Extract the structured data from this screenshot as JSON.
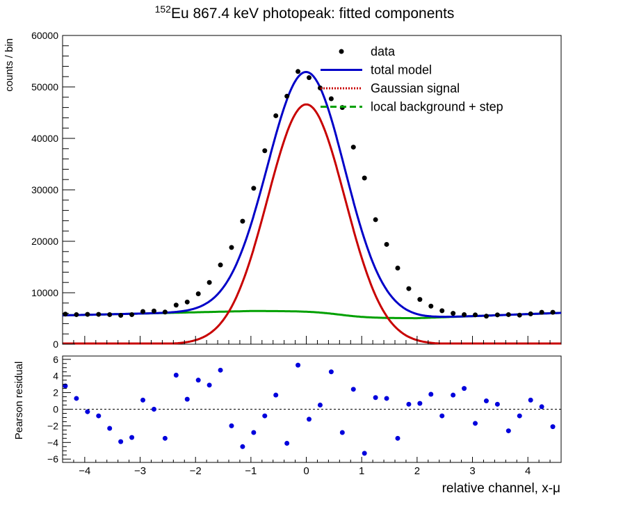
{
  "title": {
    "sup": "152",
    "main": "Eu 867.4 keV photopeak: fitted components"
  },
  "top_panel": {
    "ylabel": "counts / bin",
    "y_ticks": [
      0,
      10000,
      20000,
      30000,
      40000,
      50000,
      60000
    ],
    "y_tick_labels": [
      "0",
      "10000",
      "20000",
      "30000",
      "40000",
      "50000",
      "60000"
    ],
    "ylim": [
      0,
      60000
    ],
    "xlim": [
      -4.4,
      4.6
    ]
  },
  "bottom_panel": {
    "ylabel": "Pearson residual",
    "y_ticks": [
      -6,
      -4,
      -2,
      0,
      2,
      4,
      6
    ],
    "y_tick_labels": [
      "−6",
      "−4",
      "−2",
      "0",
      "2",
      "4",
      "6"
    ],
    "ylim": [
      -6.4,
      6.4
    ],
    "xlabel": "relative channel, x-μ",
    "x_ticks": [
      -4,
      -3,
      -2,
      -1,
      0,
      1,
      2,
      3,
      4
    ],
    "x_tick_labels": [
      "−4",
      "−3",
      "−2",
      "−1",
      "0",
      "1",
      "2",
      "3",
      "4"
    ]
  },
  "legend": {
    "position": "top-right",
    "entries": [
      {
        "label": "data",
        "style": "marker",
        "color": "#000000"
      },
      {
        "label": "total model",
        "style": "solid",
        "color": "#0000c8"
      },
      {
        "label": "Gaussian signal",
        "style": "dotted",
        "color": "#c80000"
      },
      {
        "label": "local background + step",
        "style": "dashed",
        "color": "#00a000"
      }
    ]
  },
  "colors": {
    "data": "#000000",
    "total": "#0000c8",
    "signal": "#c80000",
    "background": "#00a000",
    "residual": "#0000dc"
  },
  "chart_data": [
    {
      "type": "scatter",
      "panel": "top",
      "x": [
        -4.35,
        -4.15,
        -3.95,
        -3.75,
        -3.55,
        -3.35,
        -3.15,
        -2.95,
        -2.75,
        -2.55,
        -2.35,
        -2.15,
        -1.95,
        -1.75,
        -1.55,
        -1.35,
        -1.15,
        -0.95,
        -0.75,
        -0.55,
        -0.35,
        -0.15,
        0.05,
        0.25,
        0.45,
        0.65,
        0.85,
        1.05,
        1.25,
        1.45,
        1.65,
        1.85,
        2.05,
        2.25,
        2.45,
        2.65,
        2.85,
        3.05,
        3.25,
        3.45,
        3.65,
        3.85,
        4.05,
        4.25,
        4.45
      ],
      "y": [
        5850,
        5750,
        5800,
        5800,
        5750,
        5600,
        5750,
        6350,
        6450,
        6250,
        7600,
        8200,
        9800,
        12000,
        15400,
        18800,
        23900,
        30300,
        37600,
        44400,
        48200,
        53000,
        51800,
        49800,
        47700,
        46000,
        38300,
        32300,
        24200,
        19400,
        14800,
        10800,
        8700,
        7400,
        6500,
        6000,
        5750,
        5700,
        5450,
        5700,
        5750,
        5650,
        5900,
        6200,
        6200
      ]
    },
    {
      "type": "line",
      "panel": "top",
      "series": [
        {
          "name": "total model",
          "model": {
            "amplitude": 46600,
            "sigma": 0.7,
            "bg_left": 6450,
            "bg_right": 5050,
            "bg_slope": 250
          }
        },
        {
          "name": "Gaussian signal",
          "model": {
            "amplitude": 46600,
            "sigma": 0.7
          }
        },
        {
          "name": "local background + step",
          "model": {
            "bg_left": 6450,
            "bg_right": 5050,
            "bg_slope": 250
          }
        }
      ]
    },
    {
      "type": "scatter",
      "panel": "bottom",
      "x": [
        -4.35,
        -4.15,
        -3.95,
        -3.75,
        -3.55,
        -3.35,
        -3.15,
        -2.95,
        -2.75,
        -2.55,
        -2.35,
        -2.15,
        -1.95,
        -1.75,
        -1.55,
        -1.35,
        -1.15,
        -0.95,
        -0.75,
        -0.55,
        -0.35,
        -0.15,
        0.05,
        0.25,
        0.45,
        0.65,
        0.85,
        1.05,
        1.25,
        1.45,
        1.65,
        1.85,
        2.05,
        2.25,
        2.45,
        2.65,
        2.85,
        3.05,
        3.25,
        3.45,
        3.65,
        3.85,
        4.05,
        4.25,
        4.45
      ],
      "y": [
        2.8,
        1.3,
        -0.3,
        -0.8,
        -2.3,
        -3.9,
        -3.4,
        1.1,
        0.0,
        -3.5,
        4.1,
        1.2,
        3.5,
        2.9,
        4.7,
        -2.0,
        -4.5,
        -2.8,
        -0.8,
        1.7,
        -4.1,
        5.3,
        -1.2,
        0.5,
        4.5,
        -2.8,
        2.4,
        -5.3,
        1.4,
        1.3,
        -3.5,
        0.6,
        0.7,
        1.8,
        -0.8,
        1.7,
        2.5,
        -1.7,
        1.0,
        0.6,
        -2.6,
        -0.8,
        1.1,
        0.3,
        -2.1
      ]
    }
  ]
}
